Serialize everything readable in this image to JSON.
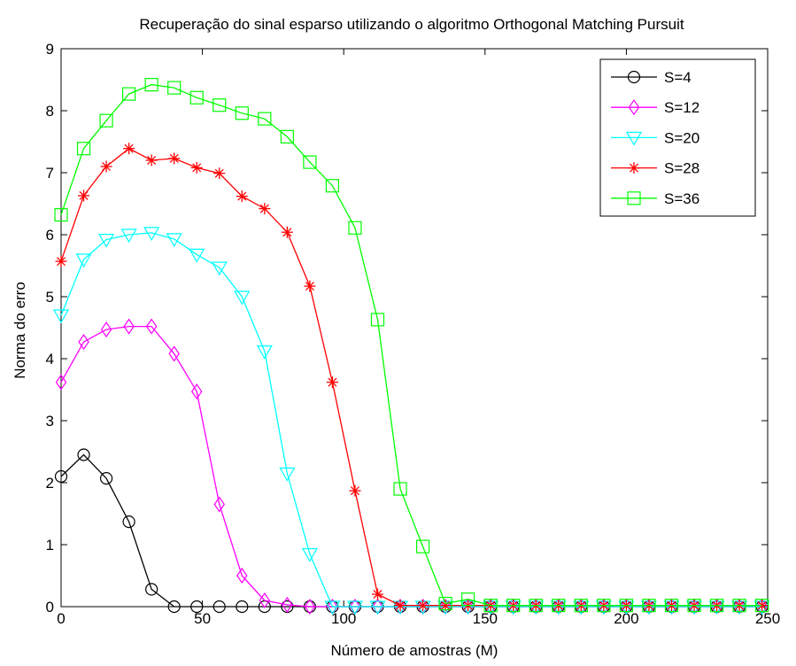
{
  "chart_data": {
    "type": "line",
    "title": "Recuperação do sinal esparso utilizando o algoritmo Orthogonal Matching Pursuit",
    "xlabel": "Número de amostras (M)",
    "ylabel": "Norma do erro",
    "xlim": [
      0,
      250
    ],
    "ylim": [
      0,
      9
    ],
    "xticks": [
      0,
      50,
      100,
      150,
      200,
      250
    ],
    "yticks": [
      0,
      1,
      2,
      3,
      4,
      5,
      6,
      7,
      8,
      9
    ],
    "grid": false,
    "legend_position": "top-right",
    "x": [
      0,
      8,
      16,
      24,
      32,
      40,
      48,
      56,
      64,
      72,
      80,
      88,
      96,
      104,
      112,
      120,
      128,
      136,
      144,
      152,
      160,
      168,
      176,
      184,
      192,
      200,
      208,
      216,
      224,
      232,
      240,
      248
    ],
    "series": [
      {
        "name": "S=4",
        "color": "#000000",
        "marker": "circle",
        "values": [
          2.1,
          2.45,
          2.07,
          1.37,
          0.28,
          0,
          0,
          0,
          0,
          0,
          0,
          0,
          0,
          0,
          0,
          0,
          0,
          0,
          0,
          0,
          0,
          0,
          0,
          0,
          0,
          0,
          0,
          0,
          0,
          0,
          0,
          0
        ]
      },
      {
        "name": "S=12",
        "color": "#ff00ff",
        "marker": "diamond",
        "values": [
          3.62,
          4.27,
          4.47,
          4.52,
          4.52,
          4.08,
          3.47,
          1.65,
          0.5,
          0.1,
          0.03,
          0,
          0,
          0,
          0,
          0,
          0,
          0,
          0,
          0,
          0,
          0,
          0,
          0,
          0,
          0,
          0,
          0,
          0,
          0,
          0,
          0
        ]
      },
      {
        "name": "S=20",
        "color": "#00ffff",
        "marker": "triangle-down",
        "values": [
          4.7,
          5.6,
          5.92,
          6.0,
          6.03,
          5.93,
          5.68,
          5.47,
          5.0,
          4.12,
          2.15,
          0.85,
          0,
          0,
          0,
          0,
          0,
          0,
          0,
          0,
          0,
          0,
          0,
          0,
          0,
          0,
          0,
          0,
          0,
          0,
          0,
          0
        ]
      },
      {
        "name": "S=28",
        "color": "#ff0000",
        "marker": "asterisk",
        "values": [
          5.57,
          6.63,
          7.1,
          7.39,
          7.2,
          7.23,
          7.08,
          6.99,
          6.62,
          6.42,
          6.04,
          5.17,
          3.62,
          1.87,
          0.2,
          0.02,
          0.02,
          0.02,
          0.02,
          0.02,
          0.02,
          0.02,
          0.02,
          0.02,
          0.02,
          0.02,
          0.02,
          0.02,
          0.02,
          0.02,
          0.02,
          0.02
        ]
      },
      {
        "name": "S=36",
        "color": "#00ff00",
        "marker": "square",
        "values": [
          6.32,
          7.39,
          7.84,
          8.27,
          8.42,
          8.37,
          8.21,
          8.09,
          7.96,
          7.87,
          7.58,
          7.17,
          6.79,
          6.11,
          4.63,
          1.9,
          0.97,
          0.05,
          0.12,
          0.02,
          0.02,
          0.02,
          0.02,
          0.02,
          0.02,
          0.02,
          0.02,
          0.02,
          0.02,
          0.02,
          0.02,
          0.02
        ]
      }
    ]
  }
}
